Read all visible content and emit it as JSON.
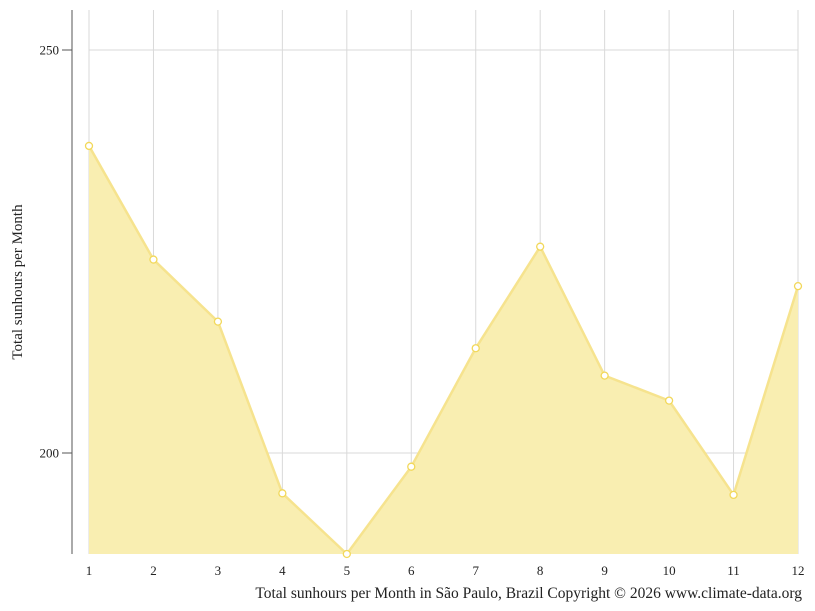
{
  "chart_data": {
    "type": "area",
    "title": "",
    "xlabel": "",
    "ylabel": "Total sunhours per Month",
    "caption": "Total sunhours per Month in São Paulo, Brazil Copyright © 2026 www.climate-data.org",
    "x": [
      1,
      2,
      3,
      4,
      5,
      6,
      7,
      8,
      9,
      10,
      11,
      12
    ],
    "series": [
      {
        "values": [
          238.1,
          224.0,
          216.3,
          195.0,
          187.3,
          198.3,
          213.0,
          225.6,
          209.6,
          206.5,
          194.8,
          220.7
        ]
      }
    ],
    "ylim": [
      187.4,
      255.0
    ],
    "yticks": [
      200,
      250
    ],
    "grid": true,
    "fill_color": "#f9eeb1",
    "line_color": "#f6e38e",
    "marker_stroke": "#f2d85a"
  }
}
